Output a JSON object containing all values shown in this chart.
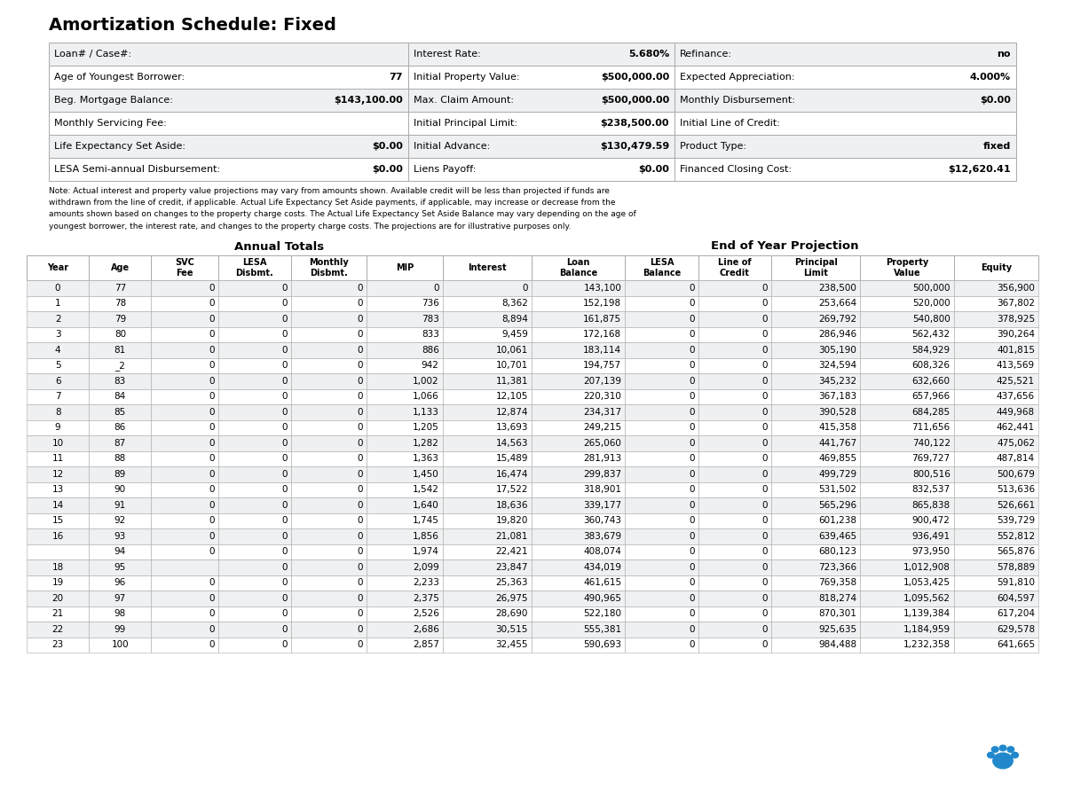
{
  "title": "Amortization Schedule: Fixed",
  "info_rows": [
    [
      "Loan# / Case#:",
      "",
      "Interest Rate:",
      "5.680%",
      "Refinance:",
      "no"
    ],
    [
      "Age of Youngest Borrower:",
      "77",
      "Initial Property Value:",
      "$500,000.00",
      "Expected Appreciation:",
      "4.000%"
    ],
    [
      "Beg. Mortgage Balance:",
      "$143,100.00",
      "Max. Claim Amount:",
      "$500,000.00",
      "Monthly Disbursement:",
      "$0.00"
    ],
    [
      "Monthly Servicing Fee:",
      "",
      "Initial Principal Limit:",
      "$238,500.00",
      "Initial Line of Credit:",
      ""
    ],
    [
      "Life Expectancy Set Aside:",
      "$0.00",
      "Initial Advance:",
      "$130,479.59",
      "Product Type:",
      "fixed"
    ],
    [
      "LESA Semi-annual Disbursement:",
      "$0.00",
      "Liens Payoff:",
      "$0.00",
      "Financed Closing Cost:",
      "$12,620.41"
    ]
  ],
  "note": "Note: Actual interest and property value projections may vary from amounts shown. Available credit will be less than projected if funds are\nwithdrawn from the line of credit, if applicable. Actual Life Expectancy Set Aside payments, if applicable, may increase or decrease from the\namounts shown based on changes to the property charge costs. The Actual Life Expectancy Set Aside Balance may vary depending on the age of\nyoungest borrower, the interest rate, and changes to the property charge costs. The projections are for illustrative purposes only.",
  "table_data": [
    [
      "0",
      "77",
      "0",
      "0",
      "0",
      "0",
      "0",
      "143,100",
      "0",
      "0",
      "238,500",
      "500,000",
      "356,900"
    ],
    [
      "1",
      "78",
      "0",
      "0",
      "0",
      "736",
      "8,362",
      "152,198",
      "0",
      "0",
      "253,664",
      "520,000",
      "367,802"
    ],
    [
      "2",
      "79",
      "0",
      "0",
      "0",
      "783",
      "8,894",
      "161,875",
      "0",
      "0",
      "269,792",
      "540,800",
      "378,925"
    ],
    [
      "3",
      "80",
      "0",
      "0",
      "0",
      "833",
      "9,459",
      "172,168",
      "0",
      "0",
      "286,946",
      "562,432",
      "390,264"
    ],
    [
      "4",
      "81",
      "0",
      "0",
      "0",
      "886",
      "10,061",
      "183,114",
      "0",
      "0",
      "305,190",
      "584,929",
      "401,815"
    ],
    [
      "5",
      "_2",
      "0",
      "0",
      "0",
      "942",
      "10,701",
      "194,757",
      "0",
      "0",
      "324,594",
      "608,326",
      "413,569"
    ],
    [
      "6",
      "83",
      "0",
      "0",
      "0",
      "1,002",
      "11,381",
      "207,139",
      "0",
      "0",
      "345,232",
      "632,660",
      "425,521"
    ],
    [
      "7",
      "84",
      "0",
      "0",
      "0",
      "1,066",
      "12,105",
      "220,310",
      "0",
      "0",
      "367,183",
      "657,966",
      "437,656"
    ],
    [
      "8",
      "85",
      "0",
      "0",
      "0",
      "1,133",
      "12,874",
      "234,317",
      "0",
      "0",
      "390,528",
      "684,285",
      "449,968"
    ],
    [
      "9",
      "86",
      "0",
      "0",
      "0",
      "1,205",
      "13,693",
      "249,215",
      "0",
      "0",
      "415,358",
      "711,656",
      "462,441"
    ],
    [
      "10",
      "87",
      "0",
      "0",
      "0",
      "1,282",
      "14,563",
      "265,060",
      "0",
      "0",
      "441,767",
      "740,122",
      "475,062"
    ],
    [
      "11",
      "88",
      "0",
      "0",
      "0",
      "1,363",
      "15,489",
      "281,913",
      "0",
      "0",
      "469,855",
      "769,727",
      "487,814"
    ],
    [
      "12",
      "89",
      "0",
      "0",
      "0",
      "1,450",
      "16,474",
      "299,837",
      "0",
      "0",
      "499,729",
      "800,516",
      "500,679"
    ],
    [
      "13",
      "90",
      "0",
      "0",
      "0",
      "1,542",
      "17,522",
      "318,901",
      "0",
      "0",
      "531,502",
      "832,537",
      "513,636"
    ],
    [
      "14",
      "91",
      "0",
      "0",
      "0",
      "1,640",
      "18,636",
      "339,177",
      "0",
      "0",
      "565,296",
      "865,838",
      "526,661"
    ],
    [
      "15",
      "92",
      "0",
      "0",
      "0",
      "1,745",
      "19,820",
      "360,743",
      "0",
      "0",
      "601,238",
      "900,472",
      "539,729"
    ],
    [
      "16",
      "93",
      "0",
      "0",
      "0",
      "1,856",
      "21,081",
      "383,679",
      "0",
      "0",
      "639,465",
      "936,491",
      "552,812"
    ],
    [
      "",
      "94",
      "0",
      "0",
      "0",
      "1,974",
      "22,421",
      "408,074",
      "0",
      "0",
      "680,123",
      "973,950",
      "565,876"
    ],
    [
      "18",
      "95",
      "",
      "0",
      "0",
      "2,099",
      "23,847",
      "434,019",
      "0",
      "0",
      "723,366",
      "1,012,908",
      "578,889"
    ],
    [
      "19",
      "96",
      "0",
      "0",
      "0",
      "2,233",
      "25,363",
      "461,615",
      "0",
      "0",
      "769,358",
      "1,053,425",
      "591,810"
    ],
    [
      "20",
      "97",
      "0",
      "0",
      "0",
      "2,375",
      "26,975",
      "490,965",
      "0",
      "0",
      "818,274",
      "1,095,562",
      "604,597"
    ],
    [
      "21",
      "98",
      "0",
      "0",
      "0",
      "2,526",
      "28,690",
      "522,180",
      "0",
      "0",
      "870,301",
      "1,139,384",
      "617,204"
    ],
    [
      "22",
      "99",
      "0",
      "0",
      "0",
      "2,686",
      "30,515",
      "555,381",
      "0",
      "0",
      "925,635",
      "1,184,959",
      "629,578"
    ],
    [
      "23",
      "100",
      "0",
      "0",
      "0",
      "2,857",
      "32,455",
      "590,693",
      "0",
      "0",
      "984,488",
      "1,232,358",
      "641,665"
    ]
  ],
  "col_headers": [
    "Year",
    "Age",
    "SVC\nFee",
    "LESA\nDisbmt.",
    "Monthly\nDisbmt.",
    "MIP",
    "Interest",
    "Loan\nBalance",
    "LESA\nBalance",
    "Line of\nCredit",
    "Principal\nLimit",
    "Property\nValue",
    "Equity"
  ],
  "bg_color": "#ffffff",
  "info_bg_even": "#eef0f2",
  "info_bg_odd": "#ffffff",
  "row_bg_even": "#eef0f2",
  "row_bg_odd": "#ffffff",
  "border_color": "#aaaaaa",
  "paw_color": "#2288cc"
}
